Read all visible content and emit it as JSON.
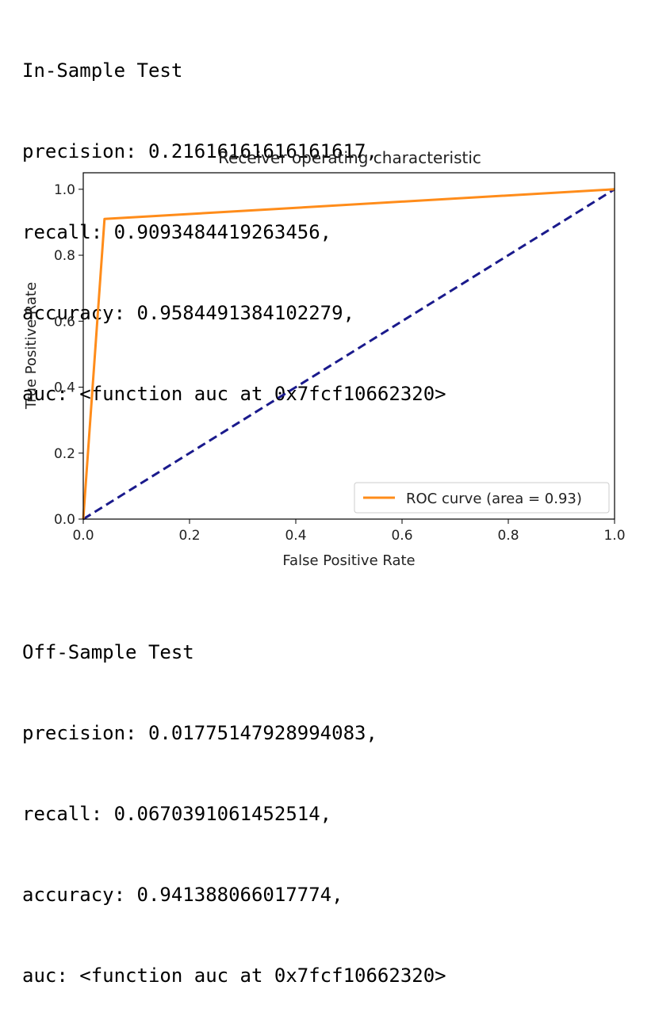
{
  "in_sample": {
    "title": "In-Sample Test",
    "precision": "precision: 0.21616161616161617,",
    "recall": "recall: 0.9093484419263456,",
    "accuracy": "accuracy: 0.9584491384102279,",
    "auc": "auc: <function auc at 0x7fcf10662320>"
  },
  "off_sample": {
    "title": "Off-Sample Test",
    "precision": "precision: 0.01775147928994083,",
    "recall": "recall: 0.0670391061452514,",
    "accuracy": "accuracy: 0.941388066017774,",
    "auc": "auc: <function auc at 0x7fcf10662320>"
  },
  "chart_data": {
    "type": "line",
    "title": "Receiver operating characteristic",
    "xlabel": "False Positive Rate",
    "ylabel": "True Positive Rate",
    "xlim": [
      0.0,
      1.0
    ],
    "ylim": [
      0.0,
      1.05
    ],
    "x_ticks": [
      "0.0",
      "0.2",
      "0.4",
      "0.6",
      "0.8",
      "1.0"
    ],
    "y_ticks": [
      "0.0",
      "0.2",
      "0.4",
      "0.6",
      "0.8",
      "1.0"
    ],
    "grid": false,
    "legend_position": "lower-right",
    "series": [
      {
        "name": "ROC curve (area = 0.93)",
        "color": "#ff8c1a",
        "style": "solid",
        "x": [
          0.0,
          0.04,
          1.0
        ],
        "y": [
          0.0,
          0.91,
          1.0
        ]
      },
      {
        "color": "#1a1a8c",
        "style": "dashed",
        "x": [
          0.0,
          1.0
        ],
        "y": [
          0.0,
          1.0
        ]
      }
    ]
  }
}
